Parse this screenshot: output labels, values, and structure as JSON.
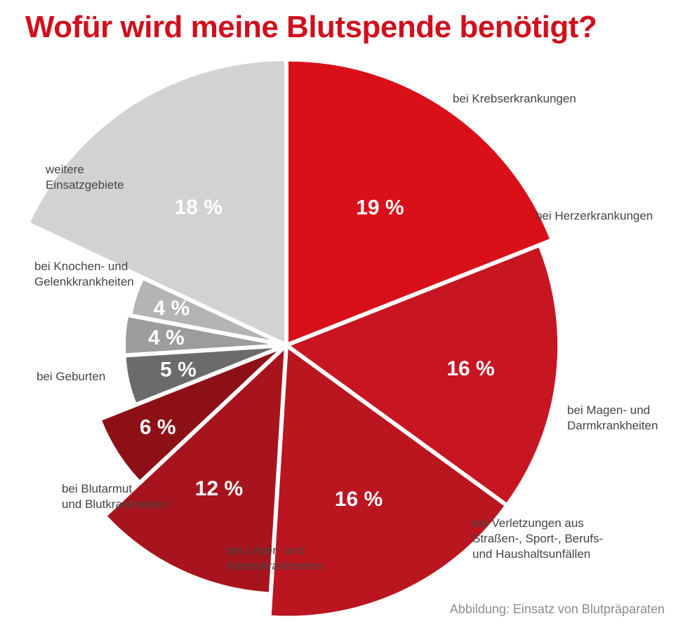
{
  "title": "Wofür wird meine Blutspende benötigt?",
  "caption": "Abbildung: Einsatz von Blutpräparaten",
  "chart_data": {
    "type": "pie",
    "title": "Wofür wird meine Blutspende benötigt?",
    "unit": "%",
    "slices": [
      {
        "label": [
          "bei Krebserkrankungen"
        ],
        "value": 19,
        "display": "19 %",
        "color": "#d90f1a"
      },
      {
        "label": [
          "bei Herzerkrankungen"
        ],
        "value": 16,
        "display": "16 %",
        "color": "#c81522"
      },
      {
        "label": [
          "bei Magen- und",
          "Darmkrankheiten"
        ],
        "value": 16,
        "display": "16 %",
        "color": "#bb1520"
      },
      {
        "label": [
          "bei Verletzungen aus",
          "Straßen-, Sport-, Berufs-",
          "und Haushaltsunfällen"
        ],
        "value": 12,
        "display": "12 %",
        "color": "#a8141d"
      },
      {
        "label": [
          "bei Leber- und",
          "Nierenkrankheiten"
        ],
        "value": 6,
        "display": "6 %",
        "color": "#8c1016"
      },
      {
        "label": [
          "bei Blutarmut",
          "und Blutkrankheiten"
        ],
        "value": 5,
        "display": "5 %",
        "color": "#6b6b6b"
      },
      {
        "label": [
          "bei Geburten"
        ],
        "value": 4,
        "display": "4 %",
        "color": "#9c9c9c"
      },
      {
        "label": [
          "bei Knochen- und",
          "Gelenkkrankheiten"
        ],
        "value": 4,
        "display": "4 %",
        "color": "#b4b4b4"
      },
      {
        "label": [
          "weitere",
          "Einsatzgebiete"
        ],
        "value": 18,
        "display": "18 %",
        "color": "#d2d2d2"
      }
    ]
  }
}
